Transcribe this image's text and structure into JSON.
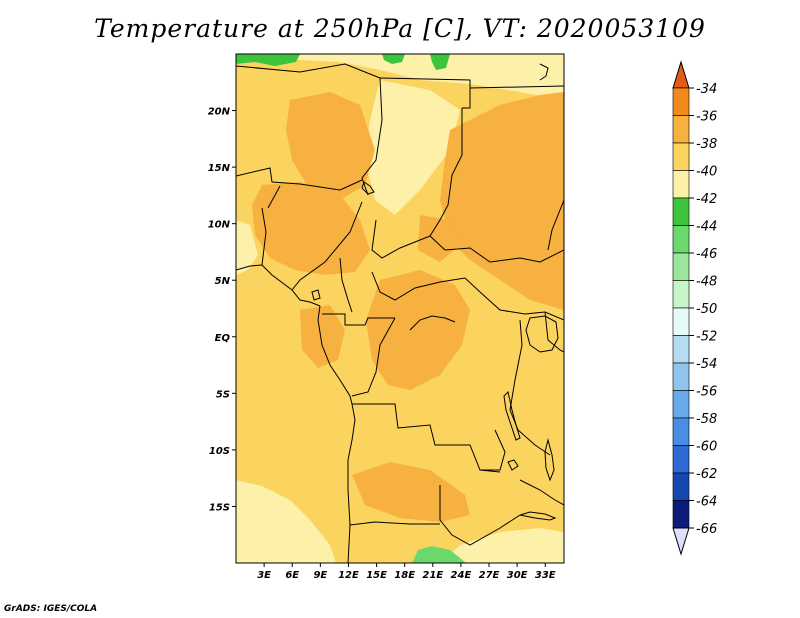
{
  "title": "Temperature at 250hPa [C], VT: 2020053109",
  "credit": "GrADS: IGES/COLA",
  "map": {
    "lon_range": [
      0,
      35
    ],
    "lat_range": [
      -20,
      25
    ],
    "lat_ticks": [
      {
        "value": 20,
        "label": "20N"
      },
      {
        "value": 15,
        "label": "15N"
      },
      {
        "value": 10,
        "label": "10N"
      },
      {
        "value": 5,
        "label": "5N"
      },
      {
        "value": 0,
        "label": "EQ"
      },
      {
        "value": -5,
        "label": "5S"
      },
      {
        "value": -10,
        "label": "10S"
      },
      {
        "value": -15,
        "label": "15S"
      }
    ],
    "lon_ticks": [
      {
        "value": 3,
        "label": "3E"
      },
      {
        "value": 6,
        "label": "6E"
      },
      {
        "value": 9,
        "label": "9E"
      },
      {
        "value": 12,
        "label": "12E"
      },
      {
        "value": 15,
        "label": "15E"
      },
      {
        "value": 18,
        "label": "18E"
      },
      {
        "value": 21,
        "label": "21E"
      },
      {
        "value": 24,
        "label": "24E"
      },
      {
        "value": 27,
        "label": "27E"
      },
      {
        "value": 30,
        "label": "30E"
      },
      {
        "value": 33,
        "label": "33E"
      }
    ],
    "fill_colors": {
      "range_neg40_neg38": "#fbd35f",
      "range_neg38_neg36": "#f6b140",
      "range_neg42_neg40": "#fdf0a8",
      "range_neg44_neg42": "#3cc43c",
      "range_neg46_neg44": "#6bd86b",
      "border": "#000000"
    }
  },
  "colorbar": {
    "labels": [
      "-34",
      "-36",
      "-38",
      "-40",
      "-42",
      "-44",
      "-46",
      "-48",
      "-50",
      "-52",
      "-54",
      "-56",
      "-58",
      "-60",
      "-62",
      "-64",
      "-66"
    ],
    "colors": [
      "#e35b16",
      "#f08a18",
      "#f6b140",
      "#fbd35f",
      "#fdf0a8",
      "#3cc43c",
      "#6bd86b",
      "#9ae69a",
      "#c8f5c8",
      "#e6fafa",
      "#b4dcf2",
      "#8ec4ee",
      "#68aaea",
      "#4a8ee4",
      "#2e6ad6",
      "#1646b0",
      "#0c1c78",
      "#dce0ff"
    ]
  }
}
